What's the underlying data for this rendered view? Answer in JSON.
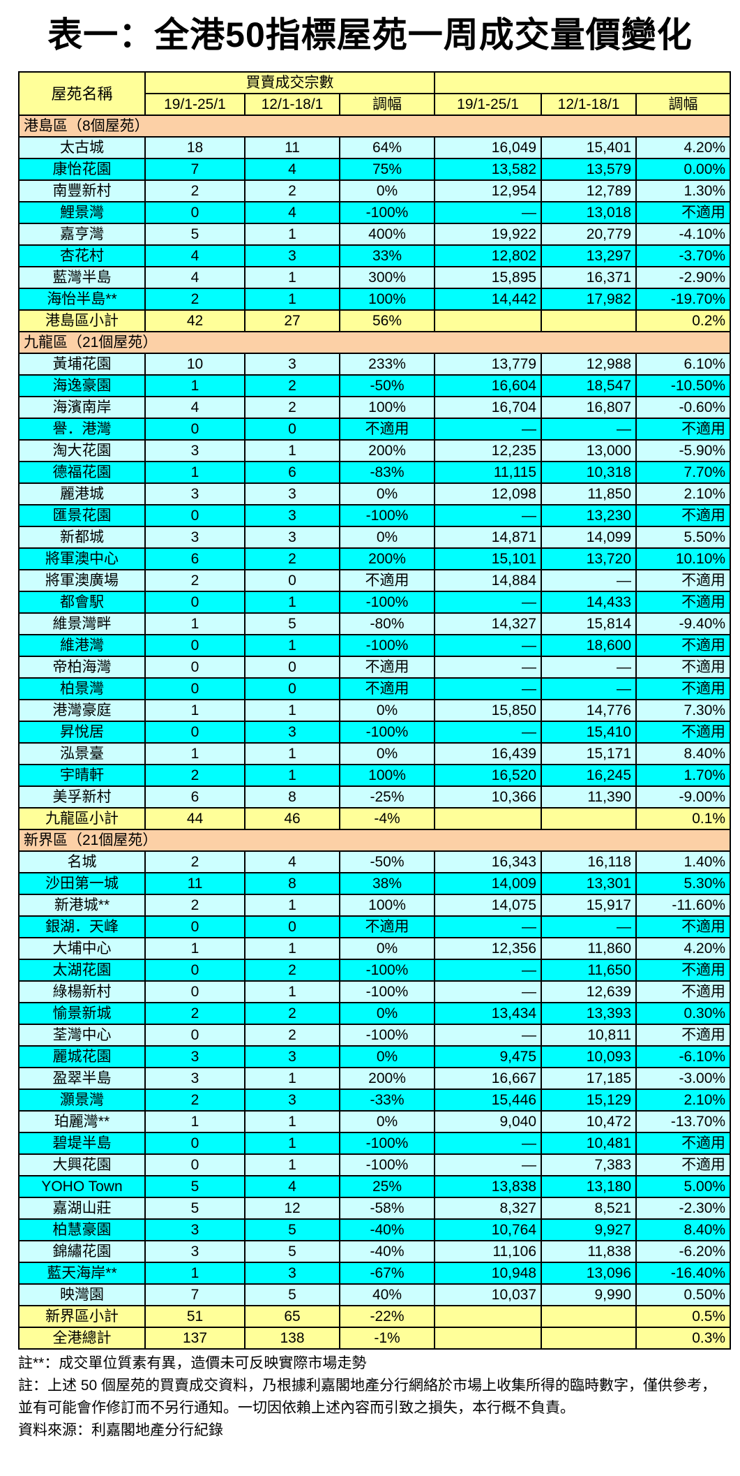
{
  "title": "表一：全港50指標屋苑一周成交量價變化",
  "header": {
    "name_col": "屋苑名稱",
    "group1": "買賣成交宗數",
    "group2": "",
    "sub": [
      "19/1-25/1",
      "12/1-18/1",
      "調幅",
      "19/1-25/1",
      "12/1-18/1",
      "調幅"
    ]
  },
  "colors": {
    "header": "#ffff99",
    "section": "#fcd0a6",
    "row_light": "#ccffff",
    "row_dark": "#00ffff",
    "subtotal": "#ffff99"
  },
  "sections": [
    {
      "label": "港島區（8個屋苑）",
      "rows": [
        [
          "太古城",
          "18",
          "11",
          "64%",
          "16,049",
          "15,401",
          "4.20%"
        ],
        [
          "康怡花園",
          "7",
          "4",
          "75%",
          "13,582",
          "13,579",
          "0.00%"
        ],
        [
          "南豐新村",
          "2",
          "2",
          "0%",
          "12,954",
          "12,789",
          "1.30%"
        ],
        [
          "鯉景灣",
          "0",
          "4",
          "-100%",
          "—",
          "13,018",
          "不適用"
        ],
        [
          "嘉亨灣",
          "5",
          "1",
          "400%",
          "19,922",
          "20,779",
          "-4.10%"
        ],
        [
          "杏花村",
          "4",
          "3",
          "33%",
          "12,802",
          "13,297",
          "-3.70%"
        ],
        [
          "藍灣半島",
          "4",
          "1",
          "300%",
          "15,895",
          "16,371",
          "-2.90%"
        ],
        [
          "海怡半島**",
          "2",
          "1",
          "100%",
          "14,442",
          "17,982",
          "-19.70%"
        ]
      ],
      "subtotal": [
        "港島區小計",
        "42",
        "27",
        "56%",
        "",
        "",
        "0.2%"
      ]
    },
    {
      "label": "九龍區（21個屋苑）",
      "rows": [
        [
          "黃埔花園",
          "10",
          "3",
          "233%",
          "13,779",
          "12,988",
          "6.10%"
        ],
        [
          "海逸豪園",
          "1",
          "2",
          "-50%",
          "16,604",
          "18,547",
          "-10.50%"
        ],
        [
          "海濱南岸",
          "4",
          "2",
          "100%",
          "16,704",
          "16,807",
          "-0.60%"
        ],
        [
          "譽．港灣",
          "0",
          "0",
          "不適用",
          "—",
          "—",
          "不適用"
        ],
        [
          "淘大花園",
          "3",
          "1",
          "200%",
          "12,235",
          "13,000",
          "-5.90%"
        ],
        [
          "德福花園",
          "1",
          "6",
          "-83%",
          "11,115",
          "10,318",
          "7.70%"
        ],
        [
          "麗港城",
          "3",
          "3",
          "0%",
          "12,098",
          "11,850",
          "2.10%"
        ],
        [
          "匯景花園",
          "0",
          "3",
          "-100%",
          "—",
          "13,230",
          "不適用"
        ],
        [
          "新都城",
          "3",
          "3",
          "0%",
          "14,871",
          "14,099",
          "5.50%"
        ],
        [
          "將軍澳中心",
          "6",
          "2",
          "200%",
          "15,101",
          "13,720",
          "10.10%"
        ],
        [
          "將軍澳廣場",
          "2",
          "0",
          "不適用",
          "14,884",
          "—",
          "不適用"
        ],
        [
          "都會駅",
          "0",
          "1",
          "-100%",
          "—",
          "14,433",
          "不適用"
        ],
        [
          "維景灣畔",
          "1",
          "5",
          "-80%",
          "14,327",
          "15,814",
          "-9.40%"
        ],
        [
          "維港灣",
          "0",
          "1",
          "-100%",
          "—",
          "18,600",
          "不適用"
        ],
        [
          "帝柏海灣",
          "0",
          "0",
          "不適用",
          "—",
          "—",
          "不適用"
        ],
        [
          "柏景灣",
          "0",
          "0",
          "不適用",
          "—",
          "—",
          "不適用"
        ],
        [
          "港灣豪庭",
          "1",
          "1",
          "0%",
          "15,850",
          "14,776",
          "7.30%"
        ],
        [
          "昇悅居",
          "0",
          "3",
          "-100%",
          "—",
          "15,410",
          "不適用"
        ],
        [
          "泓景臺",
          "1",
          "1",
          "0%",
          "16,439",
          "15,171",
          "8.40%"
        ],
        [
          "宇晴軒",
          "2",
          "1",
          "100%",
          "16,520",
          "16,245",
          "1.70%"
        ],
        [
          "美孚新村",
          "6",
          "8",
          "-25%",
          "10,366",
          "11,390",
          "-9.00%"
        ]
      ],
      "subtotal": [
        "九龍區小計",
        "44",
        "46",
        "-4%",
        "",
        "",
        "0.1%"
      ]
    },
    {
      "label": "新界區（21個屋苑）",
      "rows": [
        [
          "名城",
          "2",
          "4",
          "-50%",
          "16,343",
          "16,118",
          "1.40%"
        ],
        [
          "沙田第一城",
          "11",
          "8",
          "38%",
          "14,009",
          "13,301",
          "5.30%"
        ],
        [
          "新港城**",
          "2",
          "1",
          "100%",
          "14,075",
          "15,917",
          "-11.60%"
        ],
        [
          "銀湖．天峰",
          "0",
          "0",
          "不適用",
          "—",
          "—",
          "不適用"
        ],
        [
          "大埔中心",
          "1",
          "1",
          "0%",
          "12,356",
          "11,860",
          "4.20%"
        ],
        [
          "太湖花園",
          "0",
          "2",
          "-100%",
          "—",
          "11,650",
          "不適用"
        ],
        [
          "綠楊新村",
          "0",
          "1",
          "-100%",
          "—",
          "12,639",
          "不適用"
        ],
        [
          "愉景新城",
          "2",
          "2",
          "0%",
          "13,434",
          "13,393",
          "0.30%"
        ],
        [
          "荃灣中心",
          "0",
          "2",
          "-100%",
          "—",
          "10,811",
          "不適用"
        ],
        [
          "麗城花園",
          "3",
          "3",
          "0%",
          "9,475",
          "10,093",
          "-6.10%"
        ],
        [
          "盈翠半島",
          "3",
          "1",
          "200%",
          "16,667",
          "17,185",
          "-3.00%"
        ],
        [
          "灝景灣",
          "2",
          "3",
          "-33%",
          "15,446",
          "15,129",
          "2.10%"
        ],
        [
          "珀麗灣**",
          "1",
          "1",
          "0%",
          "9,040",
          "10,472",
          "-13.70%"
        ],
        [
          "碧堤半島",
          "0",
          "1",
          "-100%",
          "—",
          "10,481",
          "不適用"
        ],
        [
          "大興花園",
          "0",
          "1",
          "-100%",
          "—",
          "7,383",
          "不適用"
        ],
        [
          "YOHO Town",
          "5",
          "4",
          "25%",
          "13,838",
          "13,180",
          "5.00%"
        ],
        [
          "嘉湖山莊",
          "5",
          "12",
          "-58%",
          "8,327",
          "8,521",
          "-2.30%"
        ],
        [
          "柏慧豪園",
          "3",
          "5",
          "-40%",
          "10,764",
          "9,927",
          "8.40%"
        ],
        [
          "錦繡花園",
          "3",
          "5",
          "-40%",
          "11,106",
          "11,838",
          "-6.20%"
        ],
        [
          "藍天海岸**",
          "1",
          "3",
          "-67%",
          "10,948",
          "13,096",
          "-16.40%"
        ],
        [
          "映灣園",
          "7",
          "5",
          "40%",
          "10,037",
          "9,990",
          "0.50%"
        ]
      ],
      "subtotal": [
        "新界區小計",
        "51",
        "65",
        "-22%",
        "",
        "",
        "0.5%"
      ]
    }
  ],
  "total": [
    "全港總計",
    "137",
    "138",
    "-1%",
    "",
    "",
    "0.3%"
  ],
  "notes": [
    "註**：成交單位質素有異，造價未可反映實際市場走勢",
    "註：上述 50 個屋苑的買賣成交資料，乃根據利嘉閣地產分行網絡於市場上收集所得的臨時數字，僅供參考，並有可能會作修訂而不另行通知。一切因依賴上述內容而引致之損失，本行概不負責。",
    "資料來源：利嘉閣地產分行紀錄"
  ]
}
